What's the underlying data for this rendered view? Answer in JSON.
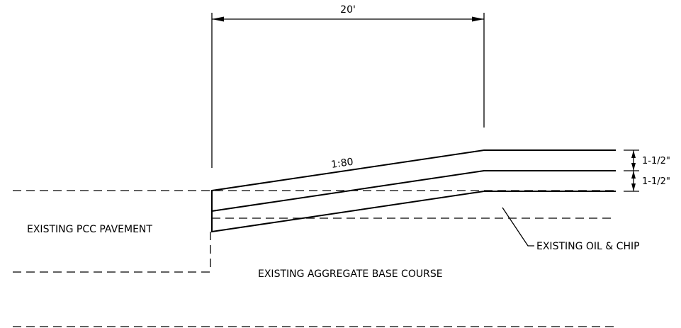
{
  "labels": {
    "overall_dimension": "20'",
    "slope": "1:80",
    "lift_top_thickness": "1-1/2\"",
    "lift_bottom_thickness": "1-1/2\"",
    "existing_pcc_pavement": "EXISTING PCC PAVEMENT",
    "existing_oil_and_chip": "EXISTING OIL & CHIP",
    "existing_aggregate_base": "EXISTING AGGREGATE BASE COURSE"
  },
  "colors": {
    "line": "#000000",
    "background": "#ffffff"
  }
}
